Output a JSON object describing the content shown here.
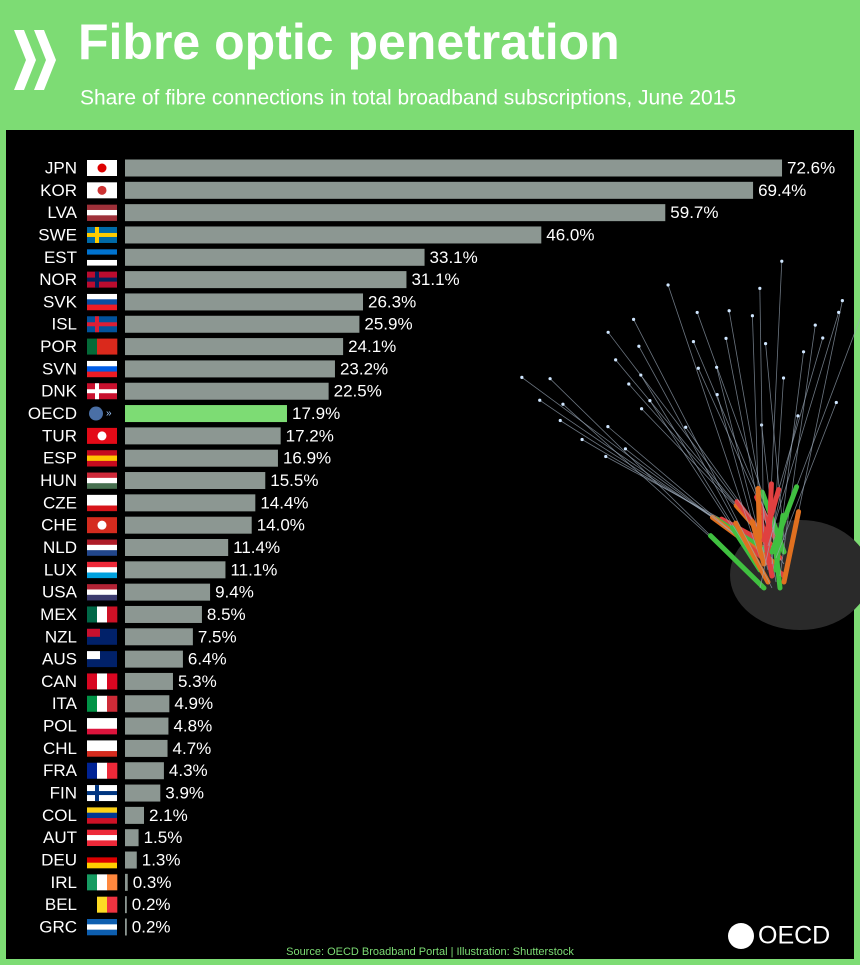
{
  "chart_data": {
    "type": "bar",
    "orientation": "horizontal",
    "title": "Fibre optic penetration",
    "subtitle": "Share of fibre connections in total broadband subscriptions, June 2015",
    "source": "Source: OECD Broadband Portal | Illustration: Shutterstock",
    "logo": "OECD",
    "categories": [
      "JPN",
      "KOR",
      "LVA",
      "SWE",
      "EST",
      "NOR",
      "SVK",
      "ISL",
      "POR",
      "SVN",
      "DNK",
      "OECD",
      "TUR",
      "ESP",
      "HUN",
      "CZE",
      "CHE",
      "NLD",
      "LUX",
      "USA",
      "MEX",
      "NZL",
      "AUS",
      "CAN",
      "ITA",
      "POL",
      "CHL",
      "FRA",
      "FIN",
      "COL",
      "AUT",
      "DEU",
      "IRL",
      "BEL",
      "GRC"
    ],
    "values": [
      72.6,
      69.4,
      59.7,
      46.0,
      33.1,
      31.1,
      26.3,
      25.9,
      24.1,
      23.2,
      22.5,
      17.9,
      17.2,
      16.9,
      15.5,
      14.4,
      14.0,
      11.4,
      11.1,
      9.4,
      8.5,
      7.5,
      6.4,
      5.3,
      4.9,
      4.8,
      4.7,
      4.3,
      3.9,
      2.1,
      1.5,
      1.3,
      0.3,
      0.2,
      0.2
    ],
    "value_labels": [
      "72.6%",
      "69.4%",
      "59.7%",
      "46.0%",
      "33.1%",
      "31.1%",
      "26.3%",
      "25.9%",
      "24.1%",
      "23.2%",
      "22.5%",
      "17.9%",
      "17.2%",
      "16.9%",
      "15.5%",
      "14.4%",
      "14.0%",
      "11.4%",
      "11.1%",
      "9.4%",
      "8.5%",
      "7.5%",
      "6.4%",
      "5.3%",
      "4.9%",
      "4.8%",
      "4.7%",
      "4.3%",
      "3.9%",
      "2.1%",
      "1.5%",
      "1.3%",
      "0.3%",
      "0.2%",
      "0.2%"
    ],
    "color": "#8c9792",
    "highlight_color": "#7ddc74",
    "highlight": "OECD",
    "xlim": [
      0,
      80
    ]
  }
}
